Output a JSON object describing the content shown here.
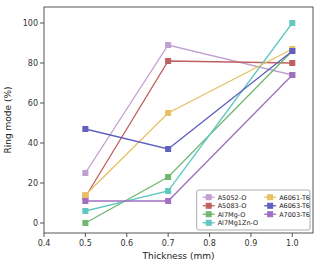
{
  "chart_data": {
    "type": "line",
    "xlabel": "Thickness (mm)",
    "ylabel": "Ring mode (%)",
    "x": [
      0.5,
      0.7,
      1.0
    ],
    "xlim": [
      0.4,
      1.05
    ],
    "ylim": [
      -5,
      108
    ],
    "xticks": [
      0.4,
      0.5,
      0.6,
      0.7,
      0.8,
      0.9,
      {
        "value": 1.0,
        "label": "1.0"
      }
    ],
    "yticks": [
      0,
      20,
      40,
      60,
      80,
      100
    ],
    "grid": false,
    "legend": "lower right",
    "series": [
      {
        "name": "A5052-O",
        "color": "#C0A0D0",
        "marker": "square",
        "line_style": "solid",
        "values": [
          25,
          89,
          74
        ]
      },
      {
        "name": "A5083-O",
        "color": "#C06060",
        "marker": "square",
        "line_style": "solid",
        "values": [
          13,
          81,
          80
        ]
      },
      {
        "name": "Al7Mg-O",
        "color": "#70B870",
        "marker": "square",
        "line_style": "solid",
        "values": [
          0,
          23,
          86
        ]
      },
      {
        "name": "Al7Mg1Zn-O",
        "color": "#60C8C0",
        "marker": "square",
        "line_style": "solid",
        "values": [
          6,
          16,
          100
        ]
      },
      {
        "name": "A6061-T6",
        "color": "#E8C060",
        "marker": "square",
        "line_style": "solid",
        "values": [
          14,
          55,
          87
        ]
      },
      {
        "name": "A6063-T6",
        "color": "#6060C0",
        "marker": "square",
        "line_style": "solid",
        "values": [
          47,
          37,
          86
        ]
      },
      {
        "name": "A7003-T6",
        "color": "#A070C0",
        "marker": "square",
        "line_style": "solid",
        "values": [
          11,
          11,
          74
        ]
      }
    ]
  }
}
